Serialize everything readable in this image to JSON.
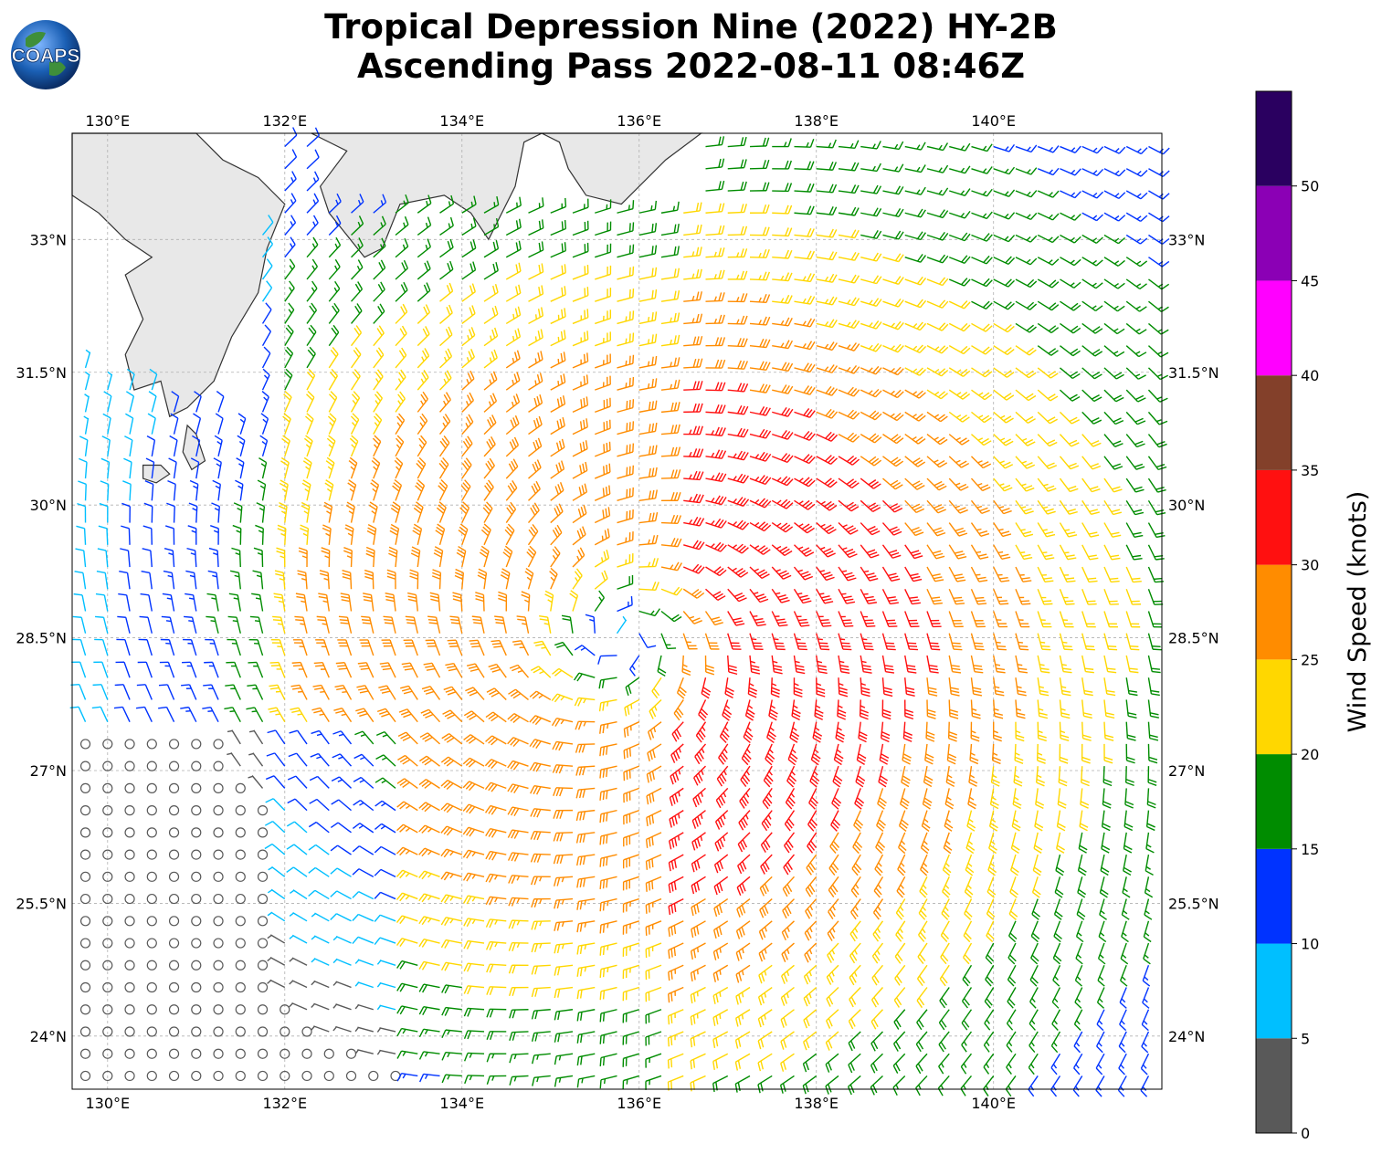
{
  "title": {
    "line1": "Tropical Depression Nine (2022) HY-2B",
    "line2": "Ascending Pass 2022-08-11 08:46Z"
  },
  "logo": {
    "text": "COAPS",
    "icon": "globe-icon"
  },
  "map": {
    "lon_range": [
      129.6,
      141.9
    ],
    "lat_range": [
      23.4,
      34.2
    ],
    "lon_ticks": [
      {
        "value": 130,
        "label": "130°E"
      },
      {
        "value": 132,
        "label": "132°E"
      },
      {
        "value": 134,
        "label": "134°E"
      },
      {
        "value": 136,
        "label": "136°E"
      },
      {
        "value": 138,
        "label": "138°E"
      },
      {
        "value": 140,
        "label": "140°E"
      }
    ],
    "lat_ticks": [
      {
        "value": 24,
        "label": "24°N"
      },
      {
        "value": 25.5,
        "label": "25.5°N"
      },
      {
        "value": 27,
        "label": "27°N"
      },
      {
        "value": 28.5,
        "label": "28.5°N"
      },
      {
        "value": 30,
        "label": "30°N"
      },
      {
        "value": 31.5,
        "label": "31.5°N"
      },
      {
        "value": 33,
        "label": "33°N"
      }
    ],
    "grid": "dashed",
    "storm_center": {
      "lon": 135.8,
      "lat": 28.5
    },
    "coast_color": "#333333",
    "land_color": "#e8e8e8"
  },
  "colorbar": {
    "label": "Wind Speed (knots)",
    "bins": [
      {
        "min": 0,
        "max": 5,
        "color": "#595959"
      },
      {
        "min": 5,
        "max": 10,
        "color": "#00bfff"
      },
      {
        "min": 10,
        "max": 15,
        "color": "#0033ff"
      },
      {
        "min": 15,
        "max": 20,
        "color": "#008c00"
      },
      {
        "min": 20,
        "max": 25,
        "color": "#ffd700"
      },
      {
        "min": 25,
        "max": 30,
        "color": "#ff8c00"
      },
      {
        "min": 30,
        "max": 35,
        "color": "#ff1010"
      },
      {
        "min": 35,
        "max": 40,
        "color": "#83402a"
      },
      {
        "min": 40,
        "max": 45,
        "color": "#ff00ff"
      },
      {
        "min": 45,
        "max": 50,
        "color": "#8b00b5"
      },
      {
        "min": 50,
        "max": 55,
        "color": "#2a0060"
      }
    ],
    "ticks": [
      {
        "value": 0,
        "label": "0"
      },
      {
        "value": 5,
        "label": "5"
      },
      {
        "value": 10,
        "label": "10"
      },
      {
        "value": 15,
        "label": "15"
      },
      {
        "value": 20,
        "label": "20"
      },
      {
        "value": 25,
        "label": "25"
      },
      {
        "value": 30,
        "label": "30"
      },
      {
        "value": 35,
        "label": "35"
      },
      {
        "value": 40,
        "label": "40"
      },
      {
        "value": 45,
        "label": "45"
      },
      {
        "value": 50,
        "label": "50"
      }
    ]
  }
}
